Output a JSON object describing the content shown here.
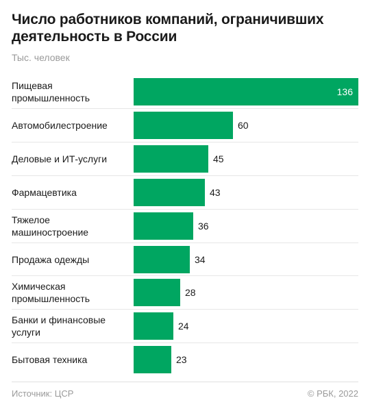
{
  "chart_data": {
    "type": "bar",
    "orientation": "horizontal",
    "title": "Число работников компаний, ограничивших деятельность в России",
    "unit_label": "Тыс. человек",
    "categories": [
      "Пищевая промышленность",
      "Автомобилестроение",
      "Деловые и ИТ-услуги",
      "Фармацевтика",
      "Тяжелое машиностроение",
      "Продажа одежды",
      "Химическая промышленность",
      "Банки и финансовые услуги",
      "Бытовая техника"
    ],
    "values": [
      136,
      60,
      45,
      43,
      36,
      34,
      28,
      24,
      23
    ],
    "xlim": [
      0,
      136
    ],
    "grid": false,
    "bar_color": "#00a661"
  },
  "footer": {
    "source": "Источник: ЦСР",
    "copyright": "© РБК, 2022"
  }
}
